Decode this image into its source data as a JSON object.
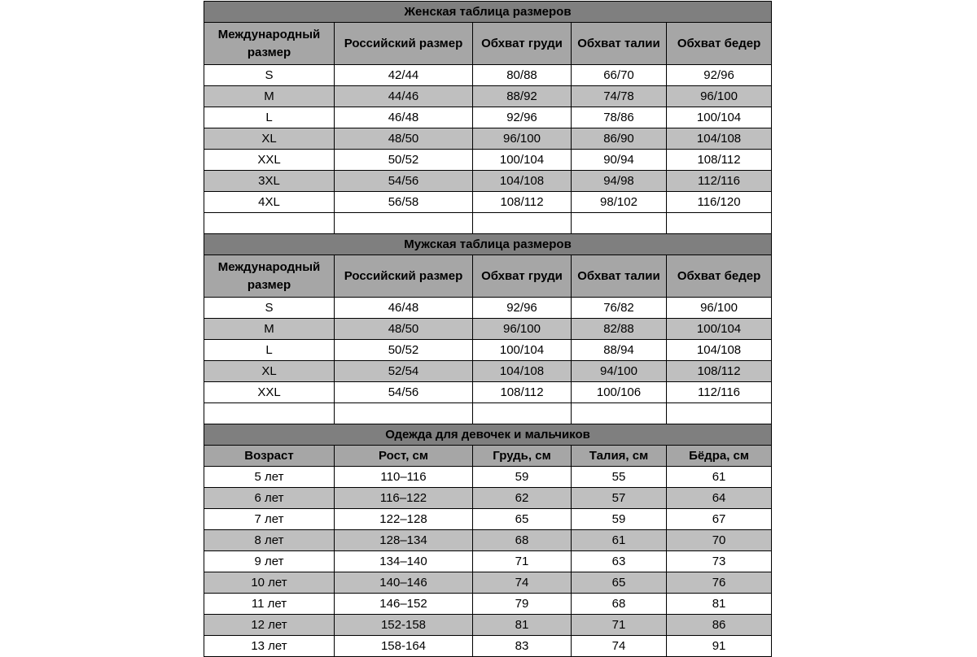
{
  "tables": [
    {
      "title": "Женская таблица размеров",
      "headers": [
        "Международный размер",
        "Российский размер",
        "Обхват груди",
        "Обхват талии",
        "Обхват бедер"
      ],
      "rows": [
        [
          "S",
          "42/44",
          "80/88",
          "66/70",
          "92/96"
        ],
        [
          "M",
          "44/46",
          "88/92",
          "74/78",
          "96/100"
        ],
        [
          "L",
          "46/48",
          "92/96",
          "78/86",
          "100/104"
        ],
        [
          "XL",
          "48/50",
          "96/100",
          "86/90",
          "104/108"
        ],
        [
          "XXL",
          "50/52",
          "100/104",
          "90/94",
          "108/112"
        ],
        [
          "3XL",
          "54/56",
          "104/108",
          "94/98",
          "112/116"
        ],
        [
          "4XL",
          "56/58",
          "108/112",
          "98/102",
          "116/120"
        ]
      ]
    },
    {
      "title": "Мужская таблица размеров",
      "headers": [
        "Международный размер",
        "Российский размер",
        "Обхват груди",
        "Обхват талии",
        "Обхват бедер"
      ],
      "rows": [
        [
          "S",
          "46/48",
          "92/96",
          "76/82",
          "96/100"
        ],
        [
          "M",
          "48/50",
          "96/100",
          "82/88",
          "100/104"
        ],
        [
          "L",
          "50/52",
          "100/104",
          "88/94",
          "104/108"
        ],
        [
          "XL",
          "52/54",
          "104/108",
          "94/100",
          "108/112"
        ],
        [
          "XXL",
          "54/56",
          "108/112",
          "100/106",
          "112/116"
        ]
      ]
    },
    {
      "title": "Одежда для девочек и мальчиков",
      "headers": [
        "Возраст",
        "Рост, см",
        "Грудь, см",
        "Талия, см",
        "Бёдра, см"
      ],
      "rows": [
        [
          "5 лет",
          "110–116",
          "59",
          "55",
          "61"
        ],
        [
          "6 лет",
          "116–122",
          "62",
          "57",
          "64"
        ],
        [
          "7 лет",
          "122–128",
          "65",
          "59",
          "67"
        ],
        [
          "8 лет",
          "128–134",
          "68",
          "61",
          "70"
        ],
        [
          "9 лет",
          "134–140",
          "71",
          "63",
          "73"
        ],
        [
          "10 лет",
          "140–146",
          "74",
          "65",
          "76"
        ],
        [
          "11 лет",
          "146–152",
          "79",
          "68",
          "81"
        ],
        [
          "12 лет",
          "152-158",
          "81",
          "71",
          "86"
        ],
        [
          "13 лет",
          "158-164",
          "83",
          "74",
          "91"
        ]
      ]
    }
  ]
}
